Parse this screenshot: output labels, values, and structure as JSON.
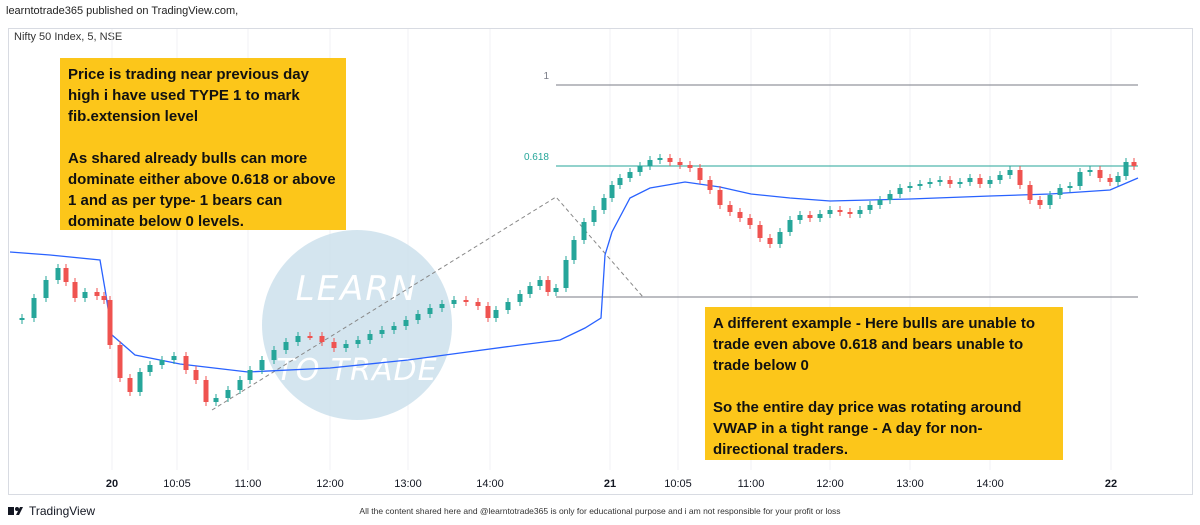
{
  "header": {
    "publisher": "learntotrade365 published on TradingView.com,"
  },
  "symbol": {
    "label": "Nifty 50 Index, 5, NSE"
  },
  "notes": {
    "left": "Price is trading near previous day high i have used TYPE 1 to mark fib.extension level\n\nAs shared already bulls can more dominate either above 0.618 or above 1 and as per type- 1 bears can dominate below 0 levels.",
    "right": "A different example - Here bulls are unable to trade even above 0.618 and bears unable to trade below 0\n\nSo the entire day price was rotating around VWAP in a tight range - A day for non-directional traders."
  },
  "footer": {
    "brand": "TradingView",
    "disclaimer": "All the content shared here and @learntotrade365 is only for educational purpose and i am not responsible for your profit or loss"
  },
  "watermark": {
    "text": "LEARN TO TRADE"
  },
  "chart_data": {
    "type": "candlestick",
    "x_tick_labels": [
      "20",
      "10:05",
      "11:00",
      "12:00",
      "13:00",
      "14:00",
      "21",
      "10:05",
      "11:00",
      "12:00",
      "13:00",
      "14:00",
      "22"
    ],
    "fib_levels": [
      {
        "label": "1",
        "color": "#787b86"
      },
      {
        "label": "0.618",
        "color": "#26a69a"
      },
      {
        "label": "",
        "color": "#787b86"
      }
    ],
    "vwap_color": "#2962ff",
    "up_color": "#26a69a",
    "down_color": "#ef5350"
  }
}
